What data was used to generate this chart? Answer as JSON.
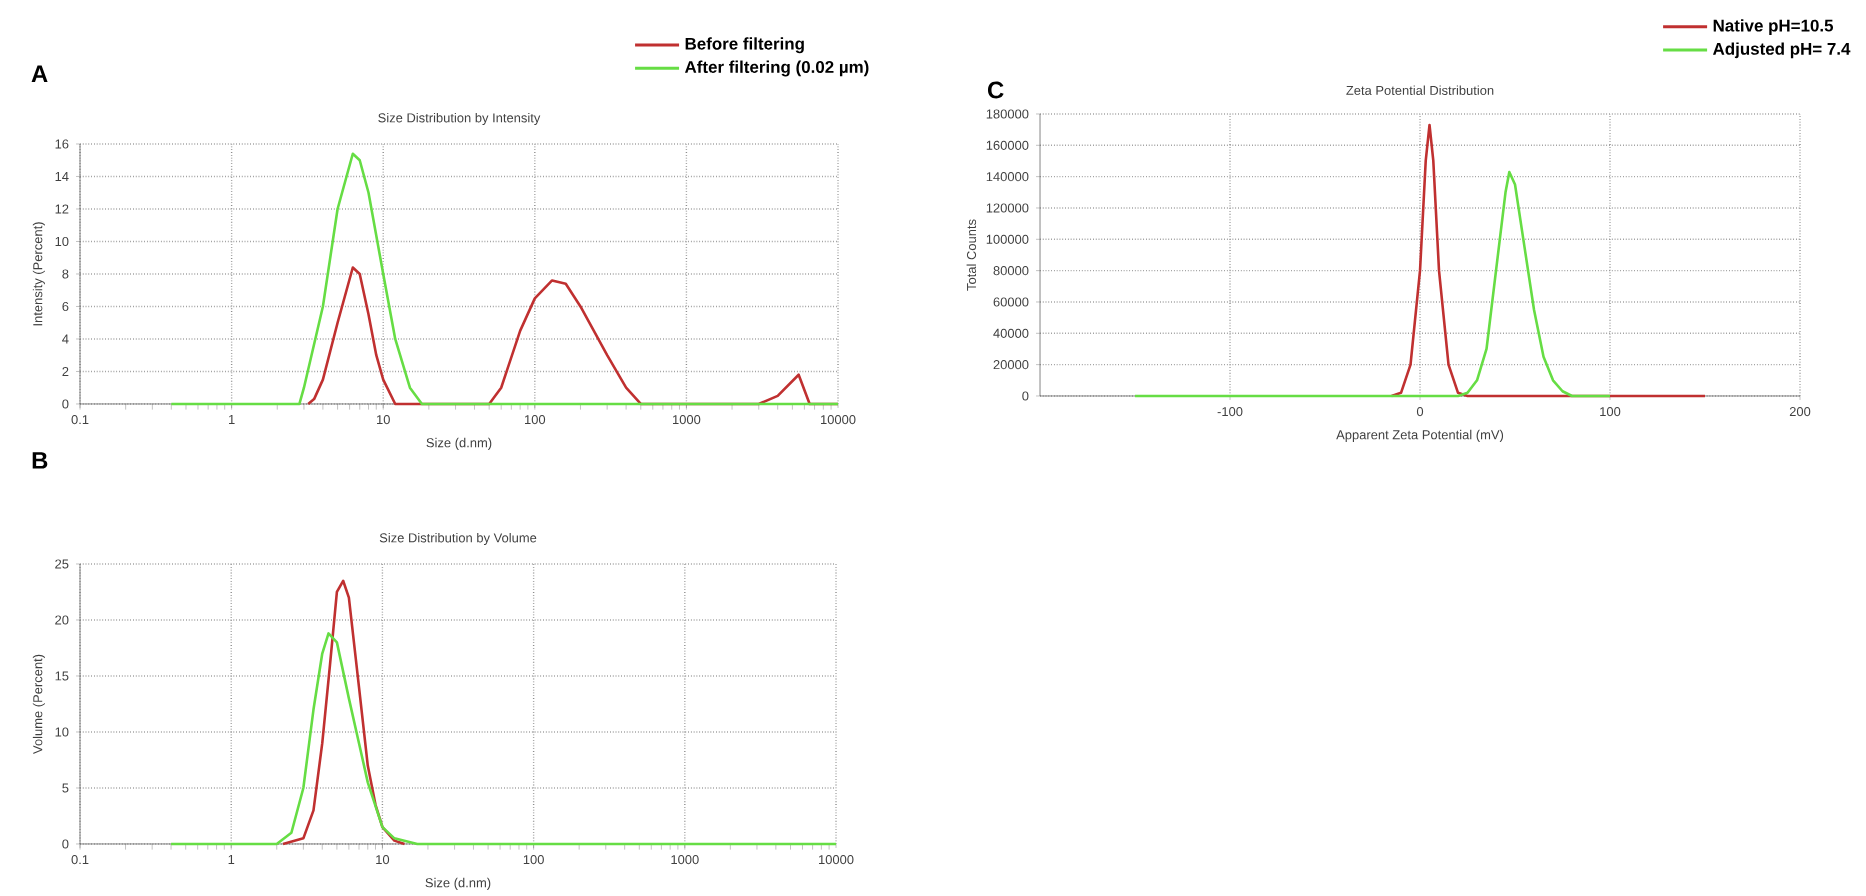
{
  "chart_data": [
    {
      "type": "line",
      "title": "Size Distribution by Intensity",
      "xlabel": "Size (d.nm)",
      "ylabel": "Intensity (Percent)",
      "annotations": [
        "A"
      ],
      "log": "x",
      "xlim": [
        0.1,
        10000
      ],
      "xticks": [
        0.1,
        1,
        10,
        100,
        1000,
        10000
      ],
      "ylim": [
        0,
        16
      ],
      "yticks": [
        0,
        2,
        4,
        6,
        8,
        10,
        12,
        14,
        16
      ],
      "grid": true,
      "legend": "top right",
      "marker": "none",
      "series": [
        {
          "name": "Before filtering",
          "color": "#c03030",
          "x": [
            3.2,
            3.5,
            4,
            5,
            6.3,
            7,
            8,
            9,
            10,
            12,
            20,
            50,
            60,
            80,
            100,
            130,
            160,
            200,
            300,
            400,
            500,
            3000,
            4000,
            5500,
            6500,
            10000
          ],
          "values": [
            0,
            0.3,
            1.5,
            5,
            8.4,
            8,
            5.5,
            3,
            1.5,
            0,
            0,
            0,
            1,
            4.5,
            6.5,
            7.6,
            7.4,
            6,
            3,
            1,
            0,
            0,
            0.5,
            1.8,
            0,
            0
          ]
        },
        {
          "name": "After filtering (0.02 µm)",
          "color": "#66dd44",
          "x": [
            0.4,
            2.8,
            3,
            4,
            5,
            6.3,
            7,
            8,
            10,
            12,
            15,
            18,
            10000
          ],
          "values": [
            0,
            0,
            1,
            6,
            12,
            15.4,
            15,
            13,
            8,
            4,
            1,
            0,
            0
          ]
        }
      ]
    },
    {
      "type": "line",
      "title": "Size Distribution by Volume",
      "xlabel": "Size (d.nm)",
      "ylabel": "Volume (Percent)",
      "annotations": [
        "B"
      ],
      "log": "x",
      "xlim": [
        0.1,
        10000
      ],
      "xticks": [
        0.1,
        1,
        10,
        100,
        1000,
        10000
      ],
      "ylim": [
        0,
        25
      ],
      "yticks": [
        0,
        5,
        10,
        15,
        20,
        25
      ],
      "grid": true,
      "marker": "none",
      "series": [
        {
          "color": "#c03030",
          "x": [
            2.2,
            3,
            3.5,
            4,
            4.5,
            5,
            5.5,
            6,
            7,
            8,
            9,
            10,
            12,
            14
          ],
          "values": [
            0,
            0.5,
            3,
            9,
            16,
            22.5,
            23.5,
            22,
            14,
            7,
            3.5,
            1.5,
            0.3,
            0
          ]
        },
        {
          "color": "#66dd44",
          "x": [
            0.4,
            2,
            2.5,
            3,
            3.5,
            4,
            4.4,
            5,
            6,
            7,
            8,
            10,
            12,
            17,
            10000
          ],
          "values": [
            0,
            0,
            1,
            5,
            12,
            17,
            18.8,
            18,
            13,
            9,
            5.5,
            1.5,
            0.5,
            0,
            0
          ]
        }
      ]
    },
    {
      "type": "line",
      "title": "Zeta Potential Distribution",
      "xlabel": "Apparent Zeta Potential (mV)",
      "ylabel": "Total Counts",
      "annotations": [
        "C"
      ],
      "xlim": [
        -200,
        200
      ],
      "xticks": [
        -100,
        0,
        100,
        200
      ],
      "ylim": [
        0,
        180000
      ],
      "yticks": [
        0,
        20000,
        40000,
        60000,
        80000,
        100000,
        120000,
        140000,
        160000,
        180000
      ],
      "grid": true,
      "legend": "top right",
      "marker": "none",
      "series": [
        {
          "name": "Native pH=10.5",
          "color": "#c03030",
          "x": [
            -15,
            -10,
            -5,
            0,
            3,
            5,
            7,
            10,
            15,
            20,
            25,
            150
          ],
          "values": [
            0,
            2000,
            20000,
            80000,
            150000,
            173000,
            150000,
            80000,
            20000,
            2000,
            0,
            0
          ]
        },
        {
          "name": "Adjusted pH= 7.4",
          "color": "#66dd44",
          "x": [
            -150,
            20,
            25,
            30,
            35,
            40,
            45,
            47,
            50,
            55,
            60,
            65,
            70,
            75,
            80,
            100
          ],
          "values": [
            0,
            0,
            2000,
            10000,
            30000,
            80000,
            130000,
            143000,
            135000,
            95000,
            55000,
            25000,
            10000,
            3000,
            0,
            0
          ]
        }
      ]
    }
  ]
}
